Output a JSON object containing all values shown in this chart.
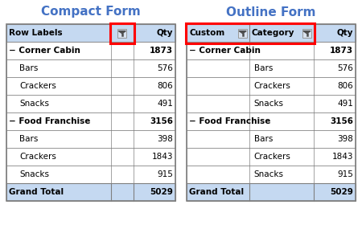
{
  "title_left": "Compact Form",
  "title_right": "Outline Form",
  "title_color": "#4472C4",
  "title_fontsize": 11,
  "header_bg": "#C5D9F1",
  "grand_total_bg": "#C5D9F1",
  "border_color": "#7F7F7F",
  "rows": [
    {
      "label": "− Corner Cabin",
      "qty": "1873",
      "bold": true,
      "indent": false
    },
    {
      "label": "Bars",
      "qty": "576",
      "bold": false,
      "indent": true
    },
    {
      "label": "Crackers",
      "qty": "806",
      "bold": false,
      "indent": true
    },
    {
      "label": "Snacks",
      "qty": "491",
      "bold": false,
      "indent": true
    },
    {
      "label": "− Food Franchise",
      "qty": "3156",
      "bold": true,
      "indent": false
    },
    {
      "label": "Bars",
      "qty": "398",
      "bold": false,
      "indent": true
    },
    {
      "label": "Crackers",
      "qty": "1843",
      "bold": false,
      "indent": true
    },
    {
      "label": "Snacks",
      "qty": "915",
      "bold": false,
      "indent": true
    }
  ],
  "grand_total_label": "Grand Total",
  "grand_total_qty": "5029",
  "fig_width": 4.5,
  "fig_height": 2.85,
  "dpi": 100
}
